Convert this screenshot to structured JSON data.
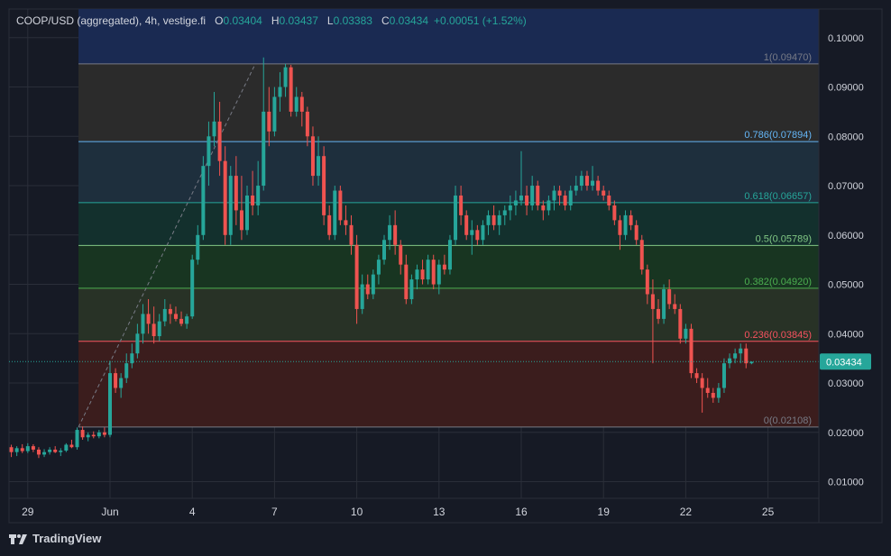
{
  "header": {
    "symbol": "COOP/USD (aggregated), 4h, vestige.fi",
    "open_label": "O",
    "open": "0.03404",
    "high_label": "H",
    "high": "0.03437",
    "low_label": "L",
    "low": "0.03383",
    "close_label": "C",
    "close": "0.03434",
    "change": "+0.00051 (+1.52%)"
  },
  "brand": {
    "name": "TradingView"
  },
  "colors": {
    "up": "#26a69a",
    "down": "#ef5350",
    "bg": "#161a25",
    "grid": "#2a2e39",
    "text": "#d1d4dc"
  },
  "chart_data": {
    "type": "candlestick",
    "price_axis": {
      "min": 0.005,
      "max": 0.105,
      "ticks": [
        "0.10000",
        "0.09000",
        "0.08000",
        "0.07000",
        "0.06000",
        "0.05000",
        "0.04000",
        "0.03000",
        "0.02000",
        "0.01000"
      ]
    },
    "time_axis": {
      "labels": [
        "29",
        "Jun",
        "4",
        "7",
        "10",
        "13",
        "16",
        "19",
        "22",
        "25"
      ],
      "label_days": [
        -3,
        0,
        3,
        6,
        9,
        12,
        15,
        18,
        21,
        24
      ]
    },
    "last_price": {
      "value": 0.03434,
      "label": "0.03434"
    },
    "fibonacci": {
      "start_day": -1.15,
      "end_day": 26.0,
      "levels": [
        {
          "ratio": "1",
          "price": 0.0947,
          "label": "1(0.09470)",
          "color": "#787b86",
          "fill": "#1a2a52"
        },
        {
          "ratio": "0.786",
          "price": 0.07894,
          "label": "0.786(0.07894)",
          "color": "#64b5f6",
          "fill": "#2b2b2b"
        },
        {
          "ratio": "0.618",
          "price": 0.06657,
          "label": "0.618(0.06657)",
          "color": "#26a69a",
          "fill": "#1e2f3d"
        },
        {
          "ratio": "0.5",
          "price": 0.05789,
          "label": "0.5(0.05789)",
          "color": "#81c784",
          "fill": "#13302d"
        },
        {
          "ratio": "0.382",
          "price": 0.0492,
          "label": "0.382(0.04920)",
          "color": "#4caf50",
          "fill": "#183521"
        },
        {
          "ratio": "0.236",
          "price": 0.03845,
          "label": "0.236(0.03845)",
          "color": "#f7525f",
          "fill": "#283226"
        },
        {
          "ratio": "0",
          "price": 0.02108,
          "label": "0(0.02108)",
          "color": "#787b86",
          "fill": "#3b1d1d"
        }
      ]
    },
    "trend_line": {
      "from": {
        "day": -1.15,
        "price": 0.02108
      },
      "to": {
        "day": 5.3,
        "price": 0.0947
      }
    },
    "candles": [
      [
        -3.6,
        0.017,
        0.0175,
        0.015,
        0.016
      ],
      [
        -3.4,
        0.016,
        0.0172,
        0.0152,
        0.0168
      ],
      [
        -3.2,
        0.0168,
        0.0176,
        0.0158,
        0.0162
      ],
      [
        -3.0,
        0.0162,
        0.0178,
        0.0158,
        0.0172
      ],
      [
        -2.8,
        0.0172,
        0.0176,
        0.016,
        0.0165
      ],
      [
        -2.6,
        0.0165,
        0.017,
        0.0148,
        0.0155
      ],
      [
        -2.4,
        0.0155,
        0.0166,
        0.015,
        0.016
      ],
      [
        -2.2,
        0.016,
        0.017,
        0.0155,
        0.0165
      ],
      [
        -2.0,
        0.0165,
        0.0172,
        0.0158,
        0.016
      ],
      [
        -1.8,
        0.016,
        0.0168,
        0.0152,
        0.0163
      ],
      [
        -1.6,
        0.0163,
        0.0178,
        0.016,
        0.0175
      ],
      [
        -1.4,
        0.0175,
        0.0185,
        0.0168,
        0.017
      ],
      [
        -1.2,
        0.017,
        0.021,
        0.0165,
        0.0205
      ],
      [
        -1.0,
        0.0205,
        0.0212,
        0.0185,
        0.019
      ],
      [
        -0.8,
        0.019,
        0.02,
        0.0182,
        0.0195
      ],
      [
        -0.6,
        0.0195,
        0.0202,
        0.0188,
        0.0192
      ],
      [
        -0.4,
        0.0192,
        0.0205,
        0.0188,
        0.02
      ],
      [
        -0.2,
        0.02,
        0.021,
        0.019,
        0.0195
      ],
      [
        0.0,
        0.0195,
        0.0345,
        0.019,
        0.032
      ],
      [
        0.2,
        0.032,
        0.033,
        0.028,
        0.029
      ],
      [
        0.4,
        0.029,
        0.032,
        0.027,
        0.031
      ],
      [
        0.6,
        0.031,
        0.036,
        0.03,
        0.034
      ],
      [
        0.8,
        0.034,
        0.038,
        0.033,
        0.036
      ],
      [
        1.0,
        0.036,
        0.042,
        0.035,
        0.04
      ],
      [
        1.2,
        0.04,
        0.046,
        0.038,
        0.044
      ],
      [
        1.4,
        0.044,
        0.047,
        0.04,
        0.042
      ],
      [
        1.6,
        0.042,
        0.0455,
        0.038,
        0.0395
      ],
      [
        1.8,
        0.0395,
        0.044,
        0.0385,
        0.0425
      ],
      [
        2.0,
        0.0425,
        0.047,
        0.0415,
        0.045
      ],
      [
        2.2,
        0.045,
        0.046,
        0.042,
        0.044
      ],
      [
        2.4,
        0.044,
        0.0455,
        0.0425,
        0.043
      ],
      [
        2.6,
        0.043,
        0.0445,
        0.0415,
        0.042
      ],
      [
        2.8,
        0.042,
        0.044,
        0.041,
        0.0435
      ],
      [
        3.0,
        0.0435,
        0.056,
        0.043,
        0.055
      ],
      [
        3.2,
        0.055,
        0.062,
        0.054,
        0.06
      ],
      [
        3.4,
        0.06,
        0.076,
        0.059,
        0.074
      ],
      [
        3.6,
        0.074,
        0.083,
        0.07,
        0.08
      ],
      [
        3.8,
        0.08,
        0.089,
        0.078,
        0.083
      ],
      [
        4.0,
        0.083,
        0.087,
        0.072,
        0.075
      ],
      [
        4.2,
        0.075,
        0.078,
        0.058,
        0.06
      ],
      [
        4.4,
        0.06,
        0.074,
        0.058,
        0.072
      ],
      [
        4.6,
        0.072,
        0.076,
        0.062,
        0.065
      ],
      [
        4.8,
        0.065,
        0.072,
        0.059,
        0.061
      ],
      [
        5.0,
        0.061,
        0.07,
        0.06,
        0.068
      ],
      [
        5.2,
        0.068,
        0.073,
        0.064,
        0.066
      ],
      [
        5.4,
        0.066,
        0.075,
        0.064,
        0.07
      ],
      [
        5.6,
        0.07,
        0.096,
        0.069,
        0.085
      ],
      [
        5.8,
        0.085,
        0.09,
        0.078,
        0.081
      ],
      [
        6.0,
        0.081,
        0.09,
        0.08,
        0.088
      ],
      [
        6.2,
        0.088,
        0.093,
        0.085,
        0.09
      ],
      [
        6.4,
        0.09,
        0.0947,
        0.088,
        0.094
      ],
      [
        6.6,
        0.094,
        0.0945,
        0.084,
        0.085
      ],
      [
        6.8,
        0.085,
        0.09,
        0.084,
        0.088
      ],
      [
        7.0,
        0.088,
        0.089,
        0.082,
        0.085
      ],
      [
        7.2,
        0.085,
        0.086,
        0.078,
        0.08
      ],
      [
        7.4,
        0.08,
        0.082,
        0.07,
        0.072
      ],
      [
        7.6,
        0.072,
        0.08,
        0.07,
        0.076
      ],
      [
        7.8,
        0.076,
        0.078,
        0.062,
        0.064
      ],
      [
        8.0,
        0.064,
        0.066,
        0.059,
        0.06
      ],
      [
        8.2,
        0.06,
        0.07,
        0.059,
        0.069
      ],
      [
        8.4,
        0.069,
        0.07,
        0.062,
        0.063
      ],
      [
        8.6,
        0.063,
        0.066,
        0.06,
        0.062
      ],
      [
        8.8,
        0.062,
        0.064,
        0.056,
        0.058
      ],
      [
        9.0,
        0.058,
        0.06,
        0.042,
        0.045
      ],
      [
        9.2,
        0.045,
        0.052,
        0.044,
        0.05
      ],
      [
        9.4,
        0.05,
        0.052,
        0.047,
        0.048
      ],
      [
        9.6,
        0.048,
        0.053,
        0.047,
        0.052
      ],
      [
        9.8,
        0.052,
        0.056,
        0.05,
        0.055
      ],
      [
        10.0,
        0.055,
        0.06,
        0.054,
        0.059
      ],
      [
        10.2,
        0.059,
        0.064,
        0.057,
        0.062
      ],
      [
        10.4,
        0.062,
        0.065,
        0.056,
        0.058
      ],
      [
        10.6,
        0.058,
        0.059,
        0.052,
        0.054
      ],
      [
        10.8,
        0.054,
        0.056,
        0.046,
        0.047
      ],
      [
        11.0,
        0.047,
        0.052,
        0.046,
        0.051
      ],
      [
        11.2,
        0.051,
        0.054,
        0.049,
        0.053
      ],
      [
        11.4,
        0.053,
        0.055,
        0.05,
        0.051
      ],
      [
        11.6,
        0.051,
        0.056,
        0.05,
        0.055
      ],
      [
        11.8,
        0.055,
        0.056,
        0.049,
        0.05
      ],
      [
        12.0,
        0.05,
        0.055,
        0.048,
        0.054
      ],
      [
        12.2,
        0.054,
        0.056,
        0.052,
        0.053
      ],
      [
        12.4,
        0.053,
        0.06,
        0.052,
        0.059
      ],
      [
        12.6,
        0.059,
        0.07,
        0.058,
        0.068
      ],
      [
        12.8,
        0.068,
        0.07,
        0.062,
        0.064
      ],
      [
        13.0,
        0.064,
        0.065,
        0.059,
        0.06
      ],
      [
        13.2,
        0.06,
        0.063,
        0.056,
        0.061
      ],
      [
        13.4,
        0.061,
        0.062,
        0.058,
        0.059
      ],
      [
        13.6,
        0.059,
        0.063,
        0.058,
        0.062
      ],
      [
        13.8,
        0.062,
        0.065,
        0.06,
        0.064
      ],
      [
        14.0,
        0.064,
        0.066,
        0.061,
        0.062
      ],
      [
        14.2,
        0.062,
        0.065,
        0.06,
        0.064
      ],
      [
        14.4,
        0.064,
        0.066,
        0.062,
        0.065
      ],
      [
        14.6,
        0.065,
        0.068,
        0.063,
        0.066
      ],
      [
        14.8,
        0.066,
        0.069,
        0.064,
        0.067
      ],
      [
        15.0,
        0.067,
        0.077,
        0.066,
        0.068
      ],
      [
        15.2,
        0.068,
        0.07,
        0.064,
        0.066
      ],
      [
        15.4,
        0.066,
        0.072,
        0.065,
        0.07
      ],
      [
        15.6,
        0.07,
        0.071,
        0.065,
        0.066
      ],
      [
        15.8,
        0.066,
        0.067,
        0.063,
        0.065
      ],
      [
        16.0,
        0.065,
        0.068,
        0.064,
        0.067
      ],
      [
        16.2,
        0.067,
        0.07,
        0.065,
        0.069
      ],
      [
        16.4,
        0.069,
        0.07,
        0.066,
        0.068
      ],
      [
        16.6,
        0.068,
        0.069,
        0.065,
        0.066
      ],
      [
        16.8,
        0.066,
        0.07,
        0.065,
        0.069
      ],
      [
        17.0,
        0.069,
        0.072,
        0.068,
        0.07
      ],
      [
        17.2,
        0.07,
        0.073,
        0.069,
        0.072
      ],
      [
        17.4,
        0.072,
        0.073,
        0.069,
        0.07
      ],
      [
        17.6,
        0.07,
        0.074,
        0.069,
        0.071
      ],
      [
        17.8,
        0.071,
        0.072,
        0.068,
        0.069
      ],
      [
        18.0,
        0.069,
        0.07,
        0.067,
        0.068
      ],
      [
        18.2,
        0.068,
        0.069,
        0.065,
        0.066
      ],
      [
        18.4,
        0.066,
        0.067,
        0.062,
        0.063
      ],
      [
        18.6,
        0.063,
        0.064,
        0.057,
        0.06
      ],
      [
        18.8,
        0.06,
        0.065,
        0.059,
        0.064
      ],
      [
        19.0,
        0.064,
        0.065,
        0.061,
        0.062
      ],
      [
        19.2,
        0.062,
        0.063,
        0.058,
        0.059
      ],
      [
        19.4,
        0.059,
        0.06,
        0.052,
        0.053
      ],
      [
        19.6,
        0.053,
        0.054,
        0.046,
        0.048
      ],
      [
        19.8,
        0.048,
        0.051,
        0.034,
        0.045
      ],
      [
        20.0,
        0.045,
        0.047,
        0.042,
        0.043
      ],
      [
        20.2,
        0.043,
        0.05,
        0.042,
        0.049
      ],
      [
        20.4,
        0.049,
        0.051,
        0.045,
        0.046
      ],
      [
        20.6,
        0.046,
        0.048,
        0.044,
        0.045
      ],
      [
        20.8,
        0.045,
        0.046,
        0.038,
        0.039
      ],
      [
        21.0,
        0.039,
        0.042,
        0.038,
        0.041
      ],
      [
        21.2,
        0.041,
        0.042,
        0.031,
        0.032
      ],
      [
        21.4,
        0.032,
        0.033,
        0.03,
        0.031
      ],
      [
        21.6,
        0.031,
        0.032,
        0.024,
        0.029
      ],
      [
        21.8,
        0.029,
        0.031,
        0.027,
        0.028
      ],
      [
        22.0,
        0.028,
        0.029,
        0.026,
        0.027
      ],
      [
        22.2,
        0.027,
        0.03,
        0.026,
        0.029
      ],
      [
        22.4,
        0.029,
        0.035,
        0.028,
        0.034
      ],
      [
        22.6,
        0.034,
        0.036,
        0.033,
        0.035
      ],
      [
        22.8,
        0.035,
        0.037,
        0.034,
        0.036
      ],
      [
        23.0,
        0.036,
        0.038,
        0.034,
        0.037
      ],
      [
        23.2,
        0.037,
        0.038,
        0.033,
        0.034
      ],
      [
        23.4,
        0.034,
        0.0344,
        0.0338,
        0.0343
      ]
    ]
  }
}
